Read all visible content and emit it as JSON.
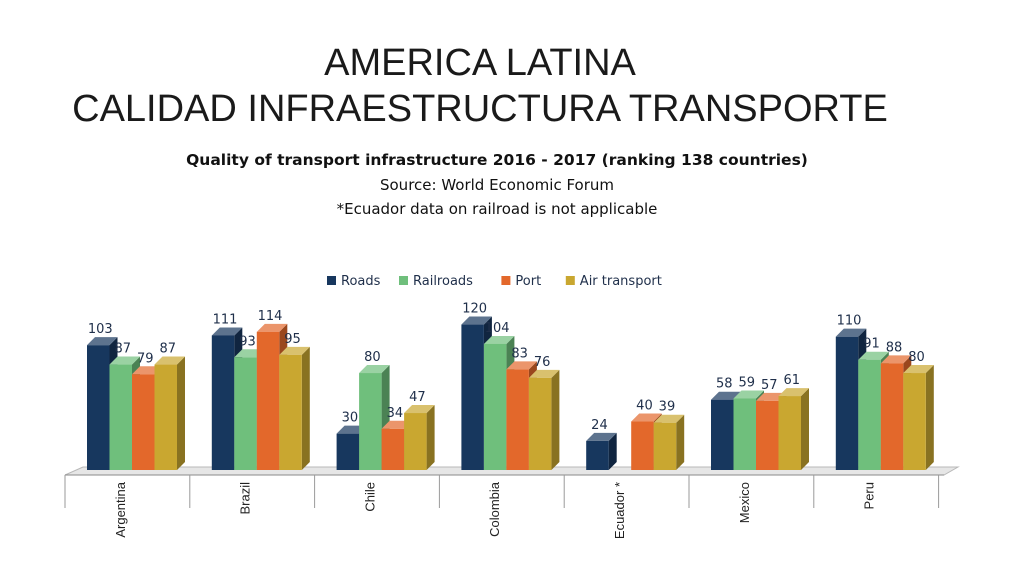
{
  "slide": {
    "title_line1": "AMERICA LATINA",
    "title_line2": "CALIDAD INFRAESTRUCTURA TRANSPORTE"
  },
  "chart_data": {
    "type": "bar",
    "title": "Quality of transport infrastructure 2016 - 2017 (ranking 138 countries)",
    "subtitle": "Source: World Economic Forum",
    "note": "*Ecuador data on railroad is not applicable",
    "categories": [
      "Argentina",
      "Brazil",
      "Chile",
      "Colombia",
      "Ecuador *",
      "Mexico",
      "Peru"
    ],
    "series": [
      {
        "name": "Roads",
        "color": "#17375e",
        "values": [
          103,
          111,
          30,
          120,
          24,
          58,
          110
        ]
      },
      {
        "name": "Railroads",
        "color": "#6fbf7c",
        "values": [
          87,
          93,
          80,
          104,
          null,
          59,
          91
        ]
      },
      {
        "name": "Port",
        "color": "#e3682b",
        "values": [
          79,
          114,
          34,
          83,
          40,
          57,
          88
        ]
      },
      {
        "name": "Air transport",
        "color": "#c9a730",
        "values": [
          87,
          95,
          47,
          76,
          39,
          61,
          80
        ]
      }
    ],
    "ylim": [
      0,
      130
    ],
    "legend_position": "top",
    "grid": false,
    "three_d": true
  }
}
